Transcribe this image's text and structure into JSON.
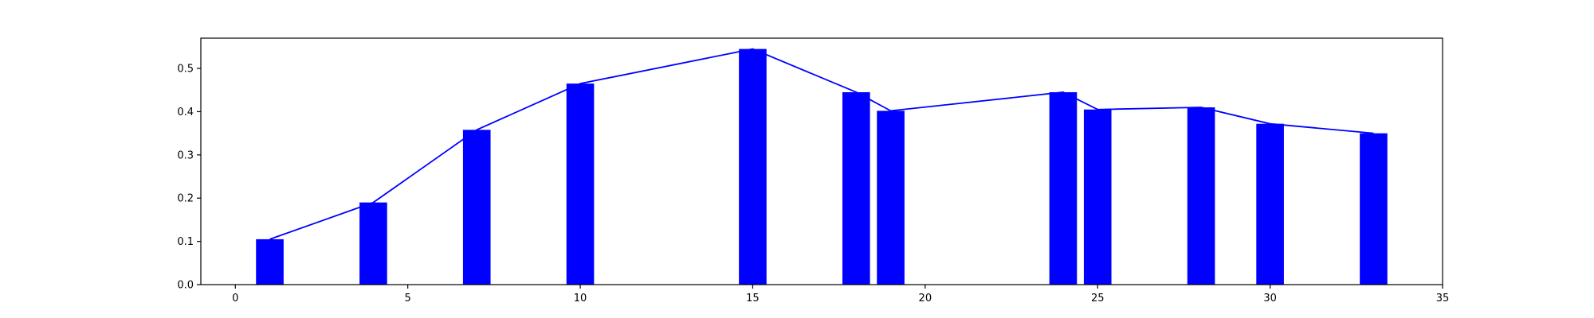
{
  "chart_data": {
    "type": "bar",
    "title": "",
    "xlabel": "",
    "ylabel": "",
    "xlim": [
      -1,
      35
    ],
    "ylim": [
      0,
      0.57
    ],
    "x_ticks": [
      0,
      5,
      10,
      15,
      20,
      25,
      30,
      35
    ],
    "x_tick_labels": [
      "0",
      "5",
      "10",
      "15",
      "20",
      "25",
      "30",
      "35"
    ],
    "y_ticks": [
      0.0,
      0.1,
      0.2,
      0.3,
      0.4,
      0.5
    ],
    "y_tick_labels": [
      "0.0",
      "0.1",
      "0.2",
      "0.3",
      "0.4",
      "0.5"
    ],
    "grid": false,
    "x": [
      1,
      4,
      7,
      10,
      15,
      18,
      19,
      24,
      25,
      28,
      30,
      33
    ],
    "values": [
      0.105,
      0.19,
      0.358,
      0.465,
      0.545,
      0.445,
      0.402,
      0.445,
      0.405,
      0.41,
      0.372,
      0.35
    ],
    "bar_width": 0.8,
    "colors": {
      "bar": "#0000ff",
      "line": "#0000ff",
      "axes": "#000000"
    }
  }
}
